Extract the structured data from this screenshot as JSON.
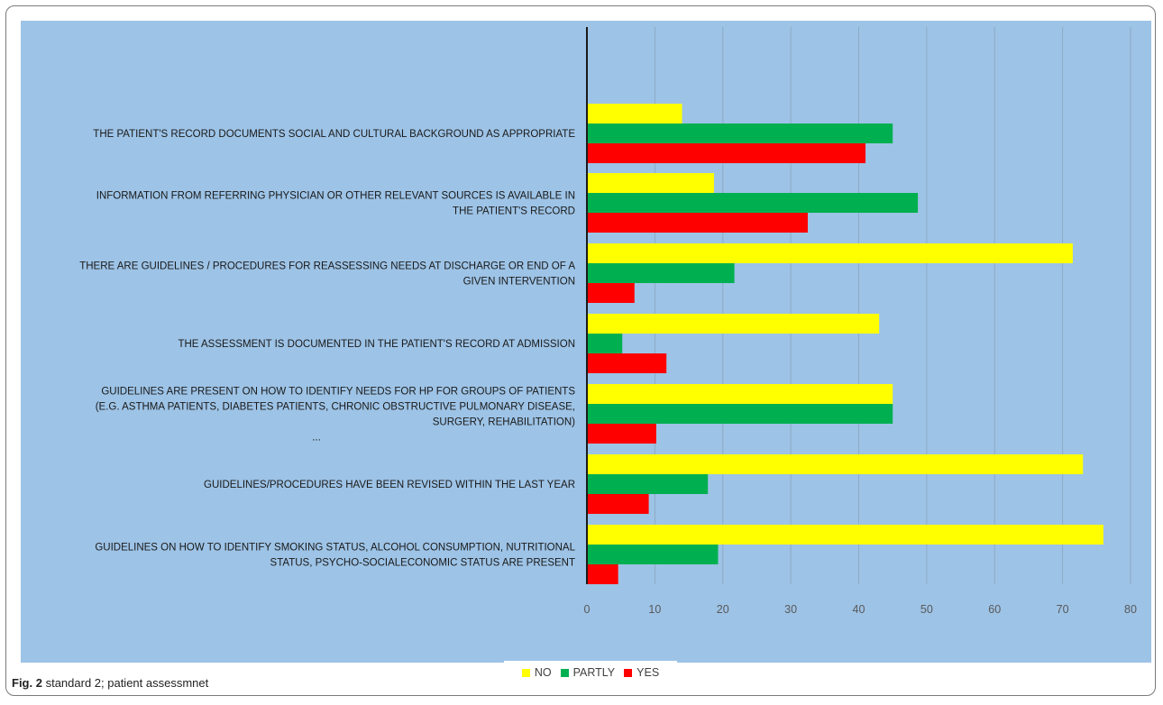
{
  "chart_data": {
    "type": "bar",
    "orientation": "horizontal",
    "categories": [
      [
        "THE PATIENT'S RECORD DOCUMENTS SOCIAL AND CULTURAL BACKGROUND AS APPROPRIATE"
      ],
      [
        "INFORMATION FROM REFERRING PHYSICIAN OR OTHER RELEVANT SOURCES IS AVAILABLE IN",
        "THE PATIENT'S RECORD"
      ],
      [
        "THERE ARE GUIDELINES / PROCEDURES FOR REASSESSING NEEDS AT DISCHARGE OR END OF A",
        "GIVEN INTERVENTION"
      ],
      [
        "THE ASSESSMENT IS DOCUMENTED IN THE PATIENT'S RECORD AT ADMISSION"
      ],
      [
        "GUIDELINES ARE PRESENT ON HOW TO IDENTIFY NEEDS FOR HP FOR GROUPS OF PATIENTS",
        "(E.G. ASTHMA PATIENTS, DIABETES PATIENTS, CHRONIC OBSTRUCTIVE PULMONARY DISEASE,",
        "SURGERY, REHABILITATION)",
        "..."
      ],
      [
        "GUIDELINES/PROCEDURES HAVE BEEN REVISED WITHIN THE LAST YEAR"
      ],
      [
        "GUIDELINES ON HOW TO IDENTIFY SMOKING STATUS, ALCOHOL CONSUMPTION, NUTRITIONAL",
        "STATUS, PSYCHO-SOCIALECONOMIC STATUS ARE PRESENT"
      ]
    ],
    "series": [
      {
        "name": "NO",
        "color": "#ffff00",
        "values": [
          14,
          18.7,
          71.5,
          43,
          45,
          73,
          76
        ]
      },
      {
        "name": "PARTLY",
        "color": "#00b050",
        "values": [
          45,
          48.7,
          21.7,
          5.2,
          45,
          17.8,
          19.3
        ]
      },
      {
        "name": "YES",
        "color": "#ff0000",
        "values": [
          41,
          32.5,
          7,
          11.7,
          10.2,
          9.1,
          4.6
        ]
      }
    ],
    "xlim": [
      0,
      80
    ],
    "x_ticks": [
      "0",
      "10",
      "20",
      "30",
      "40",
      "50",
      "60",
      "70",
      "80"
    ],
    "grid": true,
    "legend_position": "bottom"
  },
  "caption": {
    "label": "Fig. 2",
    "text": "standard 2; patient assessmnet"
  }
}
